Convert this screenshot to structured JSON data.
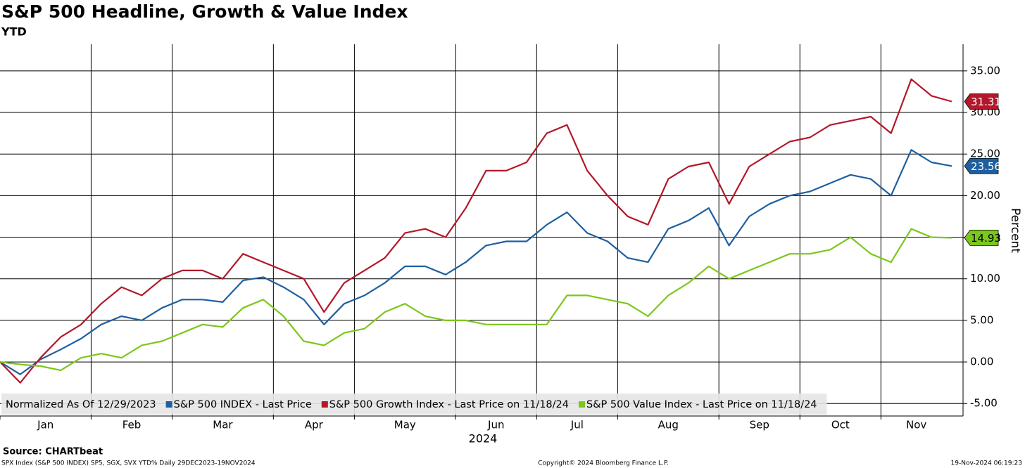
{
  "chart_data": {
    "type": "line",
    "title": "S&P 500 Headline, Growth & Value Index",
    "subtitle": "YTD",
    "y_label": "Percent",
    "x_label": "2024",
    "legend_note": "Normalized As Of 12/29/2023",
    "source": "Source: CHARTbeat",
    "footer_left": "SPX Index (S&P 500 INDEX) SP5, SGX, SVX YTD%  Daily 29DEC2023-19NOV2024",
    "footer_center": "Copyright© 2024 Bloomberg Finance L.P.",
    "footer_right": "19-Nov-2024 06:19:23",
    "categories": [
      "Jan",
      null,
      null,
      null,
      null,
      "Feb",
      null,
      null,
      null,
      "Mar",
      null,
      null,
      null,
      null,
      "Apr",
      null,
      null,
      null,
      "May",
      null,
      null,
      null,
      null,
      "Jun",
      null,
      null,
      null,
      "Jul",
      null,
      null,
      null,
      "Aug",
      null,
      null,
      null,
      null,
      "Sep",
      null,
      null,
      null,
      "Oct",
      null,
      null,
      null,
      "Nov",
      null,
      null,
      null
    ],
    "series": [
      {
        "name": "S&P 500 INDEX - Last Price",
        "color": "#1f5fa0",
        "values": [
          0,
          -1.5,
          0.3,
          1.5,
          2.8,
          4.5,
          5.5,
          5,
          6.5,
          7.5,
          7.5,
          7.2,
          9.8,
          10.2,
          9,
          7.5,
          4.5,
          7,
          8,
          9.5,
          11.5,
          11.5,
          10.5,
          12,
          14,
          14.5,
          14.5,
          16.5,
          18,
          15.5,
          14.5,
          12.5,
          12,
          16,
          17,
          18.5,
          14,
          17.5,
          19,
          20,
          20.5,
          21.5,
          22.5,
          22,
          20,
          25.5,
          24,
          23.56
        ],
        "value_labels": [
          null,
          null,
          null,
          null,
          null,
          null,
          null,
          null,
          null,
          null,
          null,
          null,
          null,
          null,
          null,
          null,
          null,
          null,
          null,
          null,
          null,
          null,
          null,
          null,
          null,
          null,
          null,
          null,
          null,
          null,
          null,
          null,
          null,
          null,
          null,
          null,
          null,
          null,
          null,
          null,
          null,
          null,
          null,
          null,
          null,
          null,
          null,
          "23.56"
        ]
      },
      {
        "name": "S&P 500 Growth Index - Last Price on 11/18/24",
        "color": "#b3172b",
        "values": [
          0,
          -2.5,
          0.5,
          3,
          4.5,
          7,
          9,
          8,
          10,
          11,
          11,
          10,
          13,
          12,
          11,
          10,
          6,
          9.5,
          11,
          12.5,
          15.5,
          16,
          15,
          18.5,
          23,
          23,
          24,
          27.5,
          28.5,
          23,
          20,
          17.5,
          16.5,
          22,
          23.5,
          24,
          19,
          23.5,
          25,
          26.5,
          27,
          28.5,
          29,
          29.5,
          27.5,
          34,
          32,
          31.31
        ],
        "value_labels": [
          null,
          null,
          null,
          null,
          null,
          null,
          null,
          null,
          null,
          null,
          null,
          null,
          null,
          null,
          null,
          null,
          null,
          null,
          null,
          null,
          null,
          null,
          null,
          null,
          null,
          null,
          null,
          null,
          null,
          null,
          null,
          null,
          null,
          null,
          null,
          null,
          null,
          null,
          null,
          null,
          null,
          null,
          null,
          null,
          null,
          null,
          null,
          "31.31"
        ]
      },
      {
        "name": "S&P 500 Value Index - Last Price on 11/18/24",
        "color": "#7cc71c",
        "values": [
          0,
          -0.3,
          -0.5,
          -1,
          0.5,
          1,
          0.5,
          2,
          2.5,
          3.5,
          4.5,
          4.2,
          6.5,
          7.5,
          5.5,
          2.5,
          2,
          3.5,
          4,
          6,
          7,
          5.5,
          5,
          5,
          4.5,
          4.5,
          4.5,
          4.5,
          8,
          8,
          7.5,
          7,
          5.5,
          8,
          9.5,
          11.5,
          10,
          11,
          12,
          13,
          13,
          13.5,
          15,
          13,
          12,
          16,
          15,
          14.93
        ],
        "value_labels": [
          null,
          null,
          null,
          null,
          null,
          null,
          null,
          null,
          null,
          null,
          null,
          null,
          null,
          null,
          null,
          null,
          null,
          null,
          null,
          null,
          null,
          null,
          null,
          null,
          null,
          null,
          null,
          null,
          null,
          null,
          null,
          null,
          null,
          null,
          null,
          null,
          null,
          null,
          null,
          null,
          null,
          null,
          null,
          null,
          null,
          null,
          null,
          "14.93"
        ]
      }
    ],
    "ylim": [
      -6.5,
      38.2
    ],
    "yticks": [
      {
        "value": -5,
        "label": "-5.00"
      },
      {
        "value": 0,
        "label": "0.00"
      },
      {
        "value": 5,
        "label": "5.00"
      },
      {
        "value": 10,
        "label": "10.00"
      },
      {
        "value": 15,
        "label": "15.00"
      },
      {
        "value": 20,
        "label": "20.00"
      },
      {
        "value": 25,
        "label": "25.00"
      },
      {
        "value": 30,
        "label": "30.00"
      },
      {
        "value": 35,
        "label": "35.00"
      }
    ],
    "grid": true
  }
}
